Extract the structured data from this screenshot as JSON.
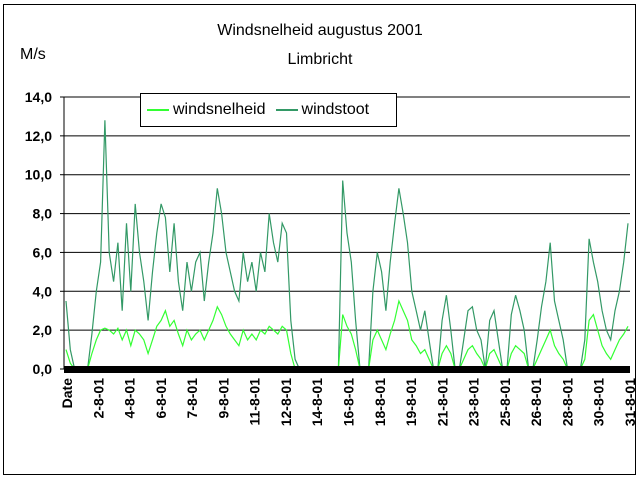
{
  "chart_data": {
    "type": "line",
    "title": "Windsnelheid augustus 2001",
    "subtitle": "Limbricht",
    "ylabel": "M/s",
    "ylim": [
      0,
      14
    ],
    "yticks": [
      "0,0",
      "2,0",
      "4,0",
      "6,0",
      "8,0",
      "10,0",
      "12,0",
      "14,0"
    ],
    "xlabel": "",
    "x_tick_labels": [
      "Date",
      "2-8-01",
      "4-8-01",
      "6-8-01",
      "7-8-01",
      "9-8-01",
      "11-8-01",
      "12-8-01",
      "14-8-01",
      "16-8-01",
      "18-8-01",
      "19-8-01",
      "21-8-01",
      "23-8-01",
      "25-8-01",
      "26-8-01",
      "28-8-01",
      "30-8-01",
      "31-8-01"
    ],
    "grid": "horizontal",
    "legend_position": "top-left",
    "series": [
      {
        "name": "windsnelheid",
        "color": "#33ff33",
        "values": [
          1.0,
          0.3,
          0,
          0,
          0,
          0,
          0.8,
          1.5,
          2.0,
          2.1,
          2.0,
          1.8,
          2.1,
          1.5,
          2.0,
          1.2,
          2.0,
          1.8,
          1.5,
          0.8,
          1.5,
          2.2,
          2.5,
          3.0,
          2.2,
          2.5,
          1.8,
          1.2,
          2.0,
          1.5,
          1.8,
          2.0,
          1.5,
          2.0,
          2.5,
          3.2,
          2.8,
          2.2,
          1.8,
          1.5,
          1.2,
          2.0,
          1.5,
          1.8,
          1.5,
          2.0,
          1.8,
          2.2,
          2.0,
          1.8,
          2.2,
          2.0,
          0.8,
          0,
          0,
          0,
          0,
          0,
          0,
          0,
          0,
          0,
          0,
          0,
          2.8,
          2.2,
          1.8,
          1.0,
          0,
          0,
          0,
          1.5,
          2.0,
          1.5,
          1.0,
          1.8,
          2.5,
          3.5,
          3.0,
          2.5,
          1.5,
          1.2,
          0.8,
          1.0,
          0.5,
          0,
          0,
          0.8,
          1.2,
          0.8,
          0,
          0,
          0.5,
          1.0,
          1.2,
          0.8,
          0.5,
          0,
          0.8,
          1.0,
          0.5,
          0,
          0,
          0.8,
          1.2,
          1.0,
          0.8,
          0,
          0,
          0.5,
          1.0,
          1.5,
          2.0,
          1.2,
          0.8,
          0.5,
          0,
          0,
          0,
          0,
          0.5,
          2.5,
          2.8,
          2.0,
          1.2,
          0.8,
          0.5,
          1.0,
          1.5,
          1.8,
          2.2
        ]
      },
      {
        "name": "windstoot",
        "color": "#339966",
        "values": [
          3.5,
          1.0,
          0,
          0,
          0,
          0,
          1.8,
          4.0,
          5.5,
          12.8,
          6.0,
          4.5,
          6.5,
          3.0,
          7.5,
          4.0,
          8.5,
          6.0,
          4.5,
          2.5,
          5.0,
          7.0,
          8.5,
          7.8,
          5.0,
          7.5,
          4.5,
          3.0,
          5.5,
          4.0,
          5.5,
          6.0,
          3.5,
          5.5,
          7.0,
          9.3,
          8.0,
          6.0,
          5.0,
          4.0,
          3.5,
          6.0,
          4.5,
          5.5,
          4.0,
          6.0,
          5.0,
          8.0,
          6.5,
          5.5,
          7.5,
          7.0,
          2.5,
          0.5,
          0,
          0,
          0,
          0,
          0,
          0,
          0,
          0,
          0,
          0,
          9.7,
          7.0,
          5.5,
          2.5,
          0,
          0,
          0,
          4.0,
          6.0,
          5.0,
          3.0,
          5.5,
          7.5,
          9.3,
          8.0,
          6.5,
          4.0,
          3.0,
          2.0,
          3.0,
          1.5,
          0,
          0,
          2.5,
          3.8,
          2.0,
          0,
          0,
          1.5,
          3.0,
          3.2,
          2.0,
          1.5,
          0,
          2.5,
          3.0,
          1.5,
          0,
          0,
          2.8,
          3.8,
          3.0,
          2.0,
          0,
          0,
          1.5,
          3.2,
          4.5,
          6.5,
          3.5,
          2.5,
          1.5,
          0,
          0,
          0,
          0,
          1.5,
          6.7,
          5.5,
          4.5,
          3.0,
          2.0,
          1.5,
          3.0,
          4.0,
          5.5,
          7.5
        ]
      }
    ]
  }
}
